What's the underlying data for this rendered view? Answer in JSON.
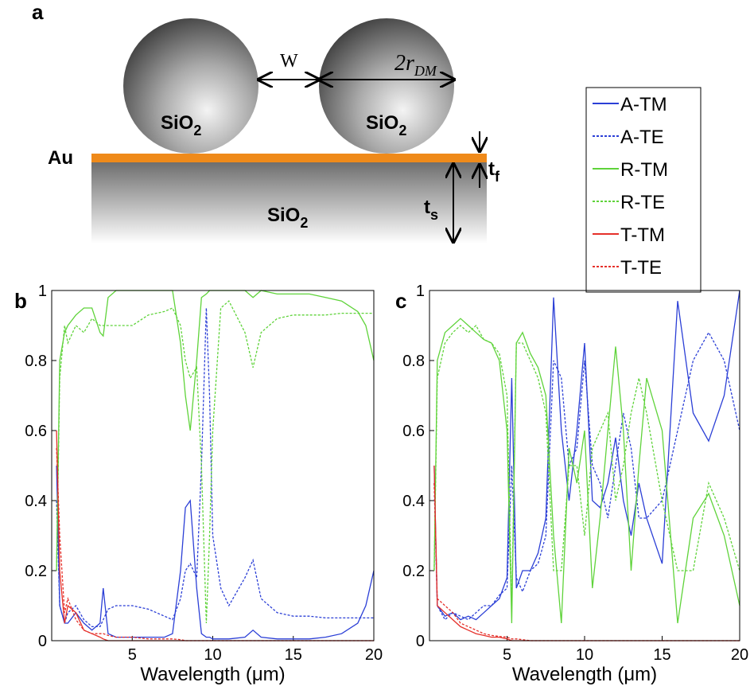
{
  "diagram": {
    "label": "a",
    "spacing": "W",
    "diameter": {
      "text": "2r",
      "sub": "DM"
    },
    "particle": {
      "text": "SiO",
      "sub": "2"
    },
    "film": "Au",
    "film_thickness": {
      "text": "t",
      "sub": "f"
    },
    "substrate_thickness": {
      "text": "t",
      "sub": "s"
    }
  },
  "chart_data": [
    {
      "type": "line",
      "label": "b",
      "x_label": "Wavelength (μm)",
      "x": [
        0.3,
        0.5,
        0.8,
        1,
        1.5,
        2,
        2.5,
        3,
        3.2,
        3.5,
        4,
        5,
        6,
        7,
        7.5,
        8,
        8.3,
        8.6,
        9,
        9.3,
        9.6,
        9.8,
        10,
        10.5,
        11,
        12,
        12.5,
        13,
        14,
        15,
        16,
        17,
        18,
        19,
        19.5,
        20
      ],
      "xlim": [
        0,
        20
      ],
      "xticks": [
        5,
        10,
        15,
        20
      ],
      "ylim": [
        0,
        1
      ],
      "yticks": [
        0,
        0.2,
        0.4,
        0.6,
        0.8,
        1
      ],
      "series": [
        {
          "name": "A-TM",
          "color": "#2b3fd6",
          "dash": false,
          "values": [
            0.5,
            0.1,
            0.05,
            0.05,
            0.08,
            0.05,
            0.03,
            0.05,
            0.15,
            0.02,
            0.01,
            0.01,
            0.01,
            0.01,
            0.02,
            0.2,
            0.38,
            0.4,
            0.15,
            0.02,
            0.01,
            0.01,
            0.005,
            0.005,
            0.005,
            0.01,
            0.03,
            0.01,
            0.005,
            0.005,
            0.005,
            0.01,
            0.02,
            0.05,
            0.1,
            0.2
          ]
        },
        {
          "name": "A-TE",
          "color": "#2b3fd6",
          "dash": true,
          "values": [
            0.4,
            0.1,
            0.05,
            0.08,
            0.1,
            0.06,
            0.04,
            0.04,
            0.06,
            0.09,
            0.1,
            0.1,
            0.09,
            0.07,
            0.06,
            0.12,
            0.2,
            0.22,
            0.18,
            0.5,
            0.95,
            0.7,
            0.3,
            0.15,
            0.1,
            0.18,
            0.23,
            0.12,
            0.08,
            0.07,
            0.07,
            0.065,
            0.065,
            0.065,
            0.065,
            0.065
          ]
        },
        {
          "name": "R-TM",
          "color": "#5fd33a",
          "dash": false,
          "values": [
            0.2,
            0.8,
            0.88,
            0.9,
            0.93,
            0.95,
            0.95,
            0.88,
            0.87,
            0.98,
            1,
            1,
            1,
            1,
            1,
            0.85,
            0.7,
            0.6,
            0.8,
            0.98,
            0.99,
            1,
            1,
            1,
            1,
            1,
            0.98,
            1,
            0.99,
            0.99,
            0.99,
            0.98,
            0.97,
            0.94,
            0.9,
            0.8
          ]
        },
        {
          "name": "R-TE",
          "color": "#5fd33a",
          "dash": true,
          "values": [
            0.2,
            0.75,
            0.9,
            0.85,
            0.9,
            0.88,
            0.92,
            0.9,
            0.9,
            0.9,
            0.9,
            0.9,
            0.93,
            0.94,
            0.95,
            0.9,
            0.8,
            0.75,
            0.78,
            0.5,
            0.05,
            0.3,
            0.6,
            0.95,
            0.97,
            0.88,
            0.78,
            0.88,
            0.92,
            0.93,
            0.93,
            0.93,
            0.935,
            0.935,
            0.935,
            0.935
          ]
        },
        {
          "name": "T-TM",
          "color": "#e5302a",
          "dash": false,
          "values": [
            0.6,
            0.2,
            0.05,
            0.1,
            0.08,
            0.03,
            0.02,
            0.01,
            0.005,
            0,
            0,
            0,
            0,
            0,
            0,
            0,
            0,
            0,
            0,
            0,
            0,
            0,
            0,
            0,
            0,
            0,
            0,
            0,
            0,
            0,
            0,
            0,
            0,
            0,
            0,
            0
          ]
        },
        {
          "name": "T-TE",
          "color": "#e5302a",
          "dash": true,
          "values": [
            0.55,
            0.3,
            0.08,
            0.12,
            0.06,
            0.03,
            0.02,
            0.02,
            0.02,
            0.015,
            0.01,
            0.01,
            0.005,
            0.005,
            0.005,
            0.003,
            0,
            0,
            0,
            0,
            0,
            0,
            0,
            0,
            0,
            0,
            0,
            0,
            0,
            0,
            0,
            0,
            0,
            0,
            0,
            0
          ]
        }
      ]
    },
    {
      "type": "line",
      "label": "c",
      "x_label": "Wavelength (μm)",
      "x": [
        0.3,
        0.5,
        1,
        1.5,
        2,
        2.5,
        3,
        3.5,
        4,
        4.5,
        5,
        5.3,
        5.6,
        6,
        6.5,
        7,
        7.5,
        8,
        8.5,
        9,
        9.5,
        10,
        10.5,
        11,
        11.5,
        12,
        12.5,
        13,
        13.5,
        14,
        15,
        16,
        17,
        18,
        19,
        20
      ],
      "xlim": [
        0,
        20
      ],
      "xticks": [
        5,
        10,
        15,
        20
      ],
      "ylim": [
        0,
        1
      ],
      "yticks": [
        0,
        0.2,
        0.4,
        0.6,
        0.8,
        1
      ],
      "series": [
        {
          "color": "#2b3fd6",
          "dash": false,
          "values": [
            0.5,
            0.1,
            0.07,
            0.08,
            0.06,
            0.07,
            0.06,
            0.08,
            0.1,
            0.12,
            0.18,
            0.75,
            0.15,
            0.2,
            0.2,
            0.25,
            0.35,
            0.98,
            0.6,
            0.4,
            0.6,
            0.85,
            0.4,
            0.38,
            0.45,
            0.58,
            0.4,
            0.3,
            0.45,
            0.35,
            0.22,
            0.97,
            0.65,
            0.57,
            0.7,
            1
          ]
        },
        {
          "color": "#2b3fd6",
          "dash": true,
          "values": [
            0.45,
            0.1,
            0.06,
            0.08,
            0.07,
            0.06,
            0.08,
            0.1,
            0.1,
            0.13,
            0.15,
            0.5,
            0.18,
            0.14,
            0.2,
            0.22,
            0.3,
            0.8,
            0.75,
            0.5,
            0.55,
            0.8,
            0.5,
            0.45,
            0.35,
            0.5,
            0.65,
            0.55,
            0.35,
            0.35,
            0.4,
            0.6,
            0.8,
            0.88,
            0.8,
            0.6
          ]
        },
        {
          "color": "#5fd33a",
          "dash": false,
          "values": [
            0.2,
            0.8,
            0.88,
            0.9,
            0.92,
            0.9,
            0.88,
            0.86,
            0.85,
            0.8,
            0.6,
            0.05,
            0.85,
            0.88,
            0.82,
            0.78,
            0.7,
            0.3,
            0.05,
            0.55,
            0.45,
            0.6,
            0.15,
            0.35,
            0.6,
            0.84,
            0.6,
            0.2,
            0.5,
            0.75,
            0.6,
            0.05,
            0.35,
            0.42,
            0.3,
            0.1
          ]
        },
        {
          "color": "#5fd33a",
          "dash": true,
          "values": [
            0.2,
            0.75,
            0.85,
            0.88,
            0.9,
            0.88,
            0.9,
            0.86,
            0.85,
            0.82,
            0.7,
            0.1,
            0.85,
            0.85,
            0.8,
            0.75,
            0.65,
            0.2,
            0.2,
            0.5,
            0.5,
            0.3,
            0.55,
            0.6,
            0.65,
            0.4,
            0.5,
            0.65,
            0.75,
            0.65,
            0.4,
            0.2,
            0.2,
            0.45,
            0.35,
            0.2
          ]
        },
        {
          "color": "#e5302a",
          "dash": false,
          "values": [
            0.5,
            0.1,
            0.08,
            0.06,
            0.04,
            0.03,
            0.02,
            0.015,
            0.01,
            0.01,
            0.005,
            0,
            0,
            0,
            0,
            0,
            0,
            0,
            0,
            0,
            0,
            0,
            0,
            0,
            0,
            0,
            0,
            0,
            0,
            0,
            0,
            0,
            0,
            0,
            0,
            0
          ]
        },
        {
          "color": "#e5302a",
          "dash": true,
          "values": [
            0.45,
            0.12,
            0.1,
            0.08,
            0.05,
            0.04,
            0.03,
            0.02,
            0.015,
            0.012,
            0.01,
            0.005,
            0.005,
            0.003,
            0,
            0,
            0,
            0,
            0,
            0,
            0,
            0,
            0,
            0,
            0,
            0,
            0,
            0,
            0,
            0,
            0,
            0,
            0,
            0,
            0,
            0
          ]
        }
      ]
    }
  ]
}
